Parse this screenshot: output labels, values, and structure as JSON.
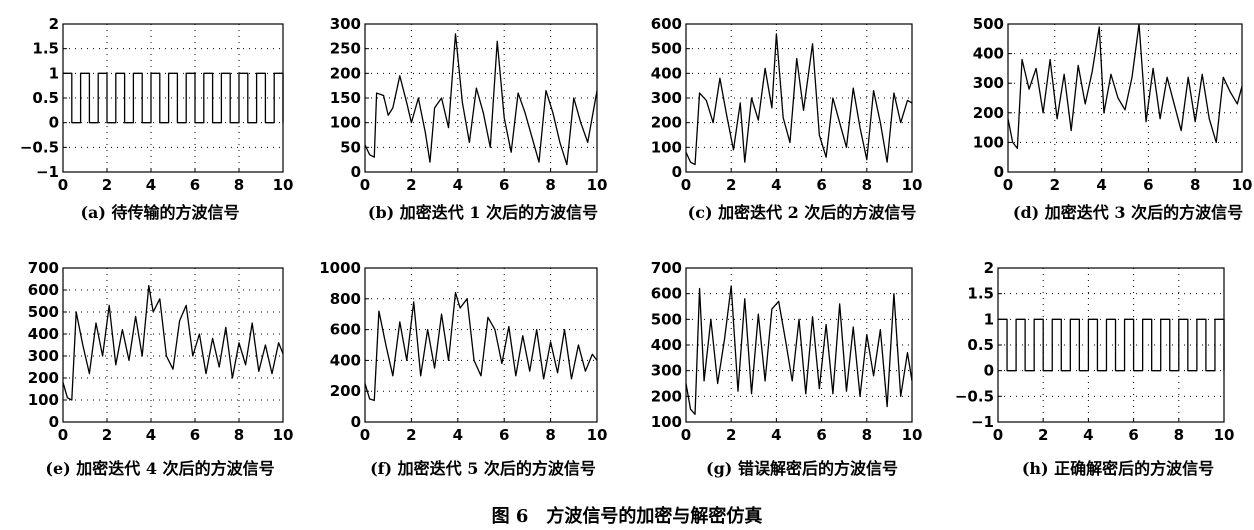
{
  "figure_caption": "图 6　方波信号的加密与解密仿真",
  "chart_data": [
    {
      "type": "line",
      "caption": "(a) 待传输的方波信号",
      "xlim": [
        0,
        10
      ],
      "ylim": [
        -1,
        2
      ],
      "xticks": [
        "0",
        "2",
        "4",
        "6",
        "8",
        "10"
      ],
      "yticks": [
        "-1",
        "-0.5",
        "0",
        "0.5",
        "1",
        "1.5",
        "2"
      ],
      "grid": true,
      "series": [
        {
          "x": [
            0,
            0.4,
            0.8,
            1.2,
            1.6,
            2.0,
            2.4,
            2.8,
            3.2,
            3.6,
            4.0,
            4.4,
            4.8,
            5.2,
            5.6,
            6.0,
            6.4,
            6.8,
            7.2,
            7.6,
            8.0,
            8.4,
            8.8,
            9.2,
            9.6,
            10.0
          ],
          "y": [
            1,
            0,
            1,
            0,
            1,
            0,
            1,
            0,
            1,
            0,
            1,
            0,
            1,
            0,
            1,
            0,
            1,
            0,
            1,
            0,
            1,
            0,
            1,
            0,
            1,
            0
          ],
          "step": true
        }
      ]
    },
    {
      "type": "line",
      "caption": "(b) 加密迭代 1 次后的方波信号",
      "xlim": [
        0,
        10
      ],
      "ylim": [
        0,
        300
      ],
      "xticks": [
        "0",
        "2",
        "4",
        "6",
        "8",
        "10"
      ],
      "yticks": [
        "0",
        "50",
        "100",
        "150",
        "200",
        "250",
        "300"
      ],
      "grid": true,
      "series": [
        {
          "x": [
            0,
            0.2,
            0.4,
            0.5,
            0.8,
            1.0,
            1.2,
            1.5,
            1.8,
            2.0,
            2.3,
            2.6,
            2.8,
            3.0,
            3.3,
            3.6,
            3.9,
            4.2,
            4.5,
            4.8,
            5.1,
            5.4,
            5.7,
            6.0,
            6.3,
            6.6,
            6.9,
            7.2,
            7.5,
            7.8,
            8.1,
            8.4,
            8.7,
            9.0,
            9.3,
            9.6,
            10.0
          ],
          "y": [
            55,
            35,
            30,
            160,
            155,
            115,
            130,
            195,
            140,
            100,
            150,
            80,
            20,
            130,
            150,
            90,
            280,
            140,
            60,
            170,
            120,
            50,
            265,
            110,
            40,
            160,
            120,
            70,
            20,
            165,
            120,
            60,
            15,
            150,
            100,
            60,
            165
          ]
        }
      ]
    },
    {
      "type": "line",
      "caption": "(c) 加密迭代 2 次后的方波信号",
      "xlim": [
        0,
        10
      ],
      "ylim": [
        0,
        600
      ],
      "xticks": [
        "0",
        "2",
        "4",
        "6",
        "8",
        "10"
      ],
      "yticks": [
        "0",
        "100",
        "200",
        "300",
        "400",
        "500",
        "600"
      ],
      "grid": true,
      "series": [
        {
          "x": [
            0,
            0.2,
            0.4,
            0.6,
            0.9,
            1.2,
            1.5,
            1.8,
            2.1,
            2.4,
            2.6,
            2.9,
            3.2,
            3.5,
            3.8,
            4.0,
            4.3,
            4.6,
            4.9,
            5.2,
            5.6,
            5.9,
            6.2,
            6.5,
            6.8,
            7.1,
            7.4,
            7.7,
            8.0,
            8.3,
            8.6,
            8.9,
            9.2,
            9.5,
            9.8,
            10.0
          ],
          "y": [
            80,
            40,
            30,
            320,
            290,
            200,
            380,
            230,
            90,
            280,
            40,
            300,
            210,
            420,
            260,
            560,
            220,
            120,
            460,
            250,
            520,
            150,
            60,
            300,
            200,
            100,
            340,
            180,
            50,
            330,
            200,
            40,
            320,
            200,
            290,
            280
          ]
        }
      ]
    },
    {
      "type": "line",
      "caption": "(d) 加密迭代 3 次后的方波信号",
      "xlim": [
        0,
        10
      ],
      "ylim": [
        0,
        500
      ],
      "xticks": [
        "0",
        "2",
        "4",
        "6",
        "8",
        "10"
      ],
      "yticks": [
        "0",
        "100",
        "200",
        "300",
        "400",
        "500"
      ],
      "grid": true,
      "series": [
        {
          "x": [
            0,
            0.2,
            0.4,
            0.6,
            0.9,
            1.2,
            1.5,
            1.8,
            2.1,
            2.4,
            2.7,
            3.0,
            3.3,
            3.6,
            3.9,
            4.1,
            4.4,
            4.7,
            5.0,
            5.3,
            5.6,
            5.9,
            6.2,
            6.5,
            6.8,
            7.1,
            7.4,
            7.7,
            8.0,
            8.3,
            8.6,
            8.9,
            9.2,
            9.5,
            9.8,
            10.0
          ],
          "y": [
            180,
            100,
            80,
            380,
            280,
            350,
            200,
            380,
            180,
            330,
            140,
            360,
            230,
            340,
            490,
            200,
            330,
            250,
            210,
            320,
            500,
            170,
            350,
            180,
            320,
            230,
            140,
            320,
            170,
            330,
            180,
            100,
            320,
            270,
            230,
            290
          ]
        }
      ]
    },
    {
      "type": "line",
      "caption": "(e) 加密迭代 4 次后的方波信号",
      "xlim": [
        0,
        10
      ],
      "ylim": [
        0,
        700
      ],
      "xticks": [
        "0",
        "2",
        "4",
        "6",
        "8",
        "10"
      ],
      "yticks": [
        "0",
        "100",
        "200",
        "300",
        "400",
        "500",
        "600",
        "700"
      ],
      "grid": true,
      "series": [
        {
          "x": [
            0,
            0.2,
            0.4,
            0.6,
            0.9,
            1.2,
            1.5,
            1.8,
            2.1,
            2.4,
            2.7,
            3.0,
            3.3,
            3.6,
            3.9,
            4.1,
            4.4,
            4.7,
            5.0,
            5.3,
            5.6,
            5.9,
            6.2,
            6.5,
            6.8,
            7.1,
            7.4,
            7.7,
            8.0,
            8.3,
            8.6,
            8.9,
            9.2,
            9.5,
            9.8,
            10.0
          ],
          "y": [
            180,
            110,
            100,
            500,
            350,
            220,
            450,
            300,
            530,
            260,
            420,
            280,
            480,
            300,
            620,
            500,
            560,
            300,
            240,
            460,
            530,
            300,
            400,
            220,
            380,
            250,
            430,
            200,
            360,
            260,
            450,
            230,
            350,
            220,
            360,
            310
          ]
        }
      ]
    },
    {
      "type": "line",
      "caption": "(f) 加密迭代 5 次后的方波信号",
      "xlim": [
        0,
        10
      ],
      "ylim": [
        0,
        1000
      ],
      "xticks": [
        "0",
        "2",
        "4",
        "6",
        "8",
        "10"
      ],
      "yticks": [
        "0",
        "200",
        "400",
        "600",
        "800",
        "1000"
      ],
      "grid": true,
      "series": [
        {
          "x": [
            0,
            0.2,
            0.4,
            0.6,
            0.9,
            1.2,
            1.5,
            1.8,
            2.1,
            2.4,
            2.7,
            3.0,
            3.3,
            3.6,
            3.9,
            4.1,
            4.4,
            4.7,
            5.0,
            5.3,
            5.6,
            5.9,
            6.2,
            6.5,
            6.8,
            7.1,
            7.4,
            7.7,
            8.0,
            8.3,
            8.6,
            8.9,
            9.2,
            9.5,
            9.8,
            10.0
          ],
          "y": [
            250,
            150,
            140,
            720,
            500,
            300,
            650,
            400,
            780,
            300,
            600,
            350,
            700,
            400,
            840,
            740,
            800,
            400,
            300,
            680,
            600,
            380,
            620,
            300,
            560,
            330,
            600,
            280,
            520,
            320,
            600,
            280,
            500,
            330,
            440,
            400
          ]
        }
      ]
    },
    {
      "type": "line",
      "caption": "(g) 错误解密后的方波信号",
      "xlim": [
        0,
        10
      ],
      "ylim": [
        100,
        700
      ],
      "xticks": [
        "0",
        "2",
        "4",
        "6",
        "8",
        "10"
      ],
      "yticks": [
        "100",
        "200",
        "300",
        "400",
        "500",
        "600",
        "700"
      ],
      "grid": true,
      "series": [
        {
          "x": [
            0,
            0.2,
            0.4,
            0.6,
            0.8,
            1.1,
            1.4,
            1.7,
            2.0,
            2.3,
            2.6,
            2.9,
            3.2,
            3.5,
            3.8,
            4.1,
            4.4,
            4.7,
            5.0,
            5.3,
            5.6,
            5.9,
            6.2,
            6.5,
            6.8,
            7.1,
            7.4,
            7.7,
            8.0,
            8.3,
            8.6,
            8.9,
            9.2,
            9.5,
            9.8,
            10.0
          ],
          "y": [
            250,
            150,
            130,
            620,
            260,
            500,
            250,
            420,
            630,
            220,
            580,
            210,
            520,
            260,
            540,
            570,
            420,
            260,
            500,
            210,
            510,
            230,
            480,
            210,
            560,
            220,
            470,
            200,
            440,
            280,
            460,
            160,
            600,
            200,
            370,
            260
          ]
        }
      ]
    },
    {
      "type": "line",
      "caption": "(h) 正确解密后的方波信号",
      "xlim": [
        0,
        10
      ],
      "ylim": [
        -1,
        2
      ],
      "xticks": [
        "0",
        "2",
        "4",
        "6",
        "8",
        "10"
      ],
      "yticks": [
        "-1",
        "-0.5",
        "0",
        "0.5",
        "1",
        "1.5",
        "2"
      ],
      "grid": true,
      "series": [
        {
          "x": [
            0,
            0.4,
            0.8,
            1.2,
            1.6,
            2.0,
            2.4,
            2.8,
            3.2,
            3.6,
            4.0,
            4.4,
            4.8,
            5.2,
            5.6,
            6.0,
            6.4,
            6.8,
            7.2,
            7.6,
            8.0,
            8.4,
            8.8,
            9.2,
            9.6,
            10.0
          ],
          "y": [
            1,
            0,
            1,
            0,
            1,
            0,
            1,
            0,
            1,
            0,
            1,
            0,
            1,
            0,
            1,
            0,
            1,
            0,
            1,
            0,
            1,
            0,
            1,
            0,
            1,
            0
          ],
          "step": true
        }
      ]
    }
  ]
}
